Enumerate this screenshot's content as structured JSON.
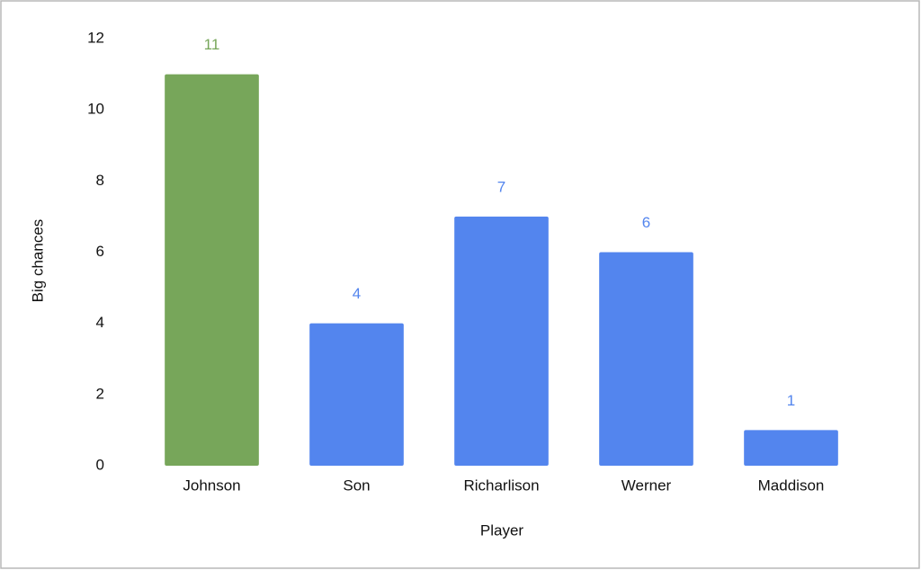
{
  "chart_data": {
    "type": "bar",
    "x_label": "Player",
    "y_label": "Big chances",
    "categories": [
      "Johnson",
      "Son",
      "Richarlison",
      "Werner",
      "Maddison"
    ],
    "values": [
      11,
      4,
      7,
      6,
      1
    ],
    "colors": [
      "#77a65a",
      "#5385ee",
      "#5385ee",
      "#5385ee",
      "#5385ee"
    ],
    "ylim": [
      0,
      12
    ],
    "yticks": [
      0,
      2,
      4,
      6,
      8,
      10,
      12
    ],
    "grid": false
  }
}
